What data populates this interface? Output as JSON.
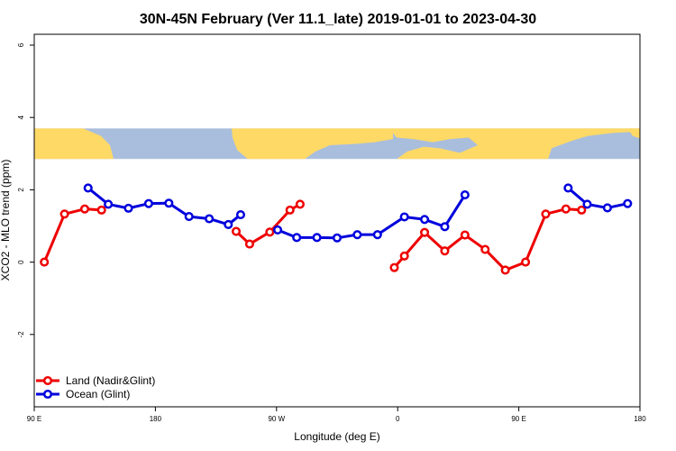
{
  "chart_data": {
    "type": "line",
    "title": "30N-45N February (Ver 11.1_late)   2019-01-01 to 2023-04-30",
    "xlabel": "Longitude (deg E)",
    "ylabel": "XCO2 - MLO trend (ppm)",
    "xlim": [
      -90,
      180
    ],
    "ylim": [
      -4,
      6.3
    ],
    "x_ticks": [
      {
        "value": -90,
        "label": "90 E"
      },
      {
        "value": -36,
        "label": "180"
      },
      {
        "value": 18,
        "label": "90 W"
      },
      {
        "value": 72,
        "label": "0"
      },
      {
        "value": 126,
        "label": "90 E"
      },
      {
        "value": 180,
        "label": "180"
      }
    ],
    "y_ticks": [
      -2,
      0,
      2,
      4,
      6
    ],
    "legend_position": "bottom-left",
    "map_strip": {
      "y_range": [
        2.85,
        3.7
      ],
      "land_color": "#ffd966",
      "ocean_color": "#a9bedd"
    },
    "series": [
      {
        "name": "Land (Nadir&Glint)",
        "color": "#ee0000",
        "segments": [
          [
            [
              -85.5,
              0.0
            ],
            [
              -76.5,
              1.33
            ],
            [
              -67.5,
              1.47
            ],
            [
              -60,
              1.44
            ]
          ],
          [
            [
              0,
              0.85
            ],
            [
              6,
              0.5
            ],
            [
              15,
              0.83
            ],
            [
              24,
              1.44
            ],
            [
              28.5,
              1.6
            ]
          ],
          [
            [
              70.5,
              -0.15
            ],
            [
              75,
              0.17
            ],
            [
              84,
              0.82
            ],
            [
              93,
              0.31
            ],
            [
              102,
              0.75
            ],
            [
              111,
              0.35
            ],
            [
              120,
              -0.22
            ],
            [
              129,
              0.0
            ],
            [
              138,
              1.33
            ],
            [
              147,
              1.47
            ],
            [
              154,
              1.44
            ]
          ]
        ]
      },
      {
        "name": "Ocean (Glint)",
        "color": "#0000dd",
        "segments": [
          [
            [
              -66,
              2.05
            ],
            [
              -57,
              1.6
            ],
            [
              -48,
              1.49
            ],
            [
              -39,
              1.62
            ],
            [
              -30,
              1.63
            ],
            [
              -21,
              1.26
            ],
            [
              -12,
              1.2
            ],
            [
              -3.5,
              1.04
            ],
            [
              2,
              1.31
            ]
          ],
          [
            [
              18.5,
              0.89
            ],
            [
              27,
              0.68
            ],
            [
              36,
              0.68
            ],
            [
              45,
              0.67
            ],
            [
              54,
              0.76
            ],
            [
              63,
              0.76
            ],
            [
              75,
              1.25
            ],
            [
              84,
              1.18
            ],
            [
              93,
              0.98
            ],
            [
              102,
              1.86
            ]
          ],
          [
            [
              148,
              2.05
            ],
            [
              156.5,
              1.6
            ],
            [
              165.5,
              1.5
            ],
            [
              174.5,
              1.62
            ]
          ]
        ]
      }
    ]
  }
}
